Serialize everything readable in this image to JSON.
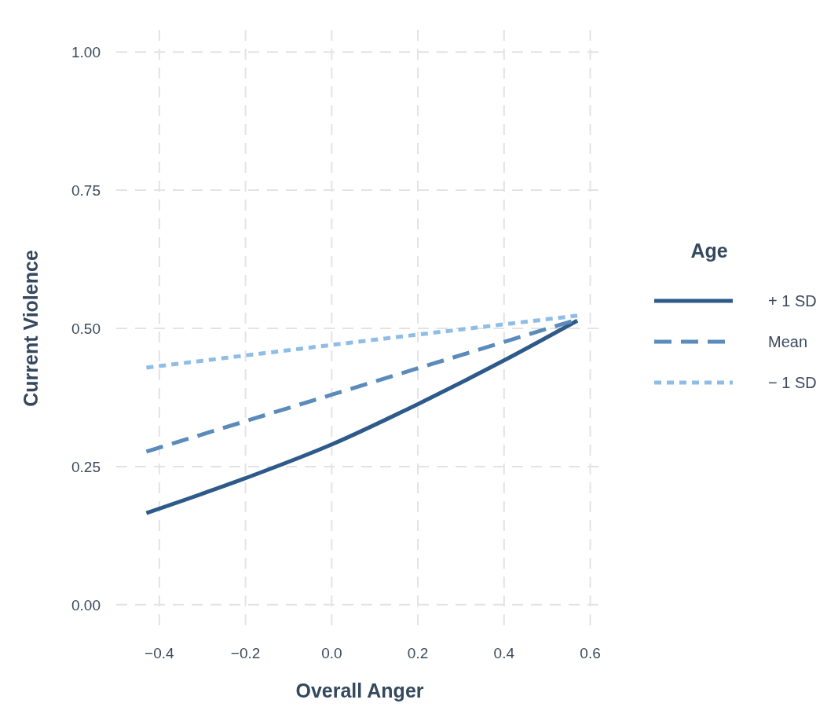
{
  "chart_data": {
    "type": "line",
    "xlabel": "Overall Anger",
    "ylabel": "Current Violence",
    "legend_title": "Age",
    "legend": "right",
    "grid": true,
    "xlim": [
      -0.5,
      0.63
    ],
    "xticks": [
      {
        "value": -0.4,
        "label": "−0.4"
      },
      {
        "value": -0.2,
        "label": "−0.2"
      },
      {
        "value": 0,
        "label": "0.0"
      },
      {
        "value": 0.2,
        "label": "0.2"
      },
      {
        "value": 0.4,
        "label": "0.4"
      },
      {
        "value": 0.6,
        "label": "0.6"
      }
    ],
    "ylim": [
      -0.04,
      1.04
    ],
    "yticks": [
      {
        "value": 0,
        "label": "0.00"
      },
      {
        "value": 0.25,
        "label": "0.25"
      },
      {
        "value": 0.5,
        "label": "0.50"
      },
      {
        "value": 0.75,
        "label": "0.75"
      },
      {
        "value": 1,
        "label": "1.00"
      }
    ],
    "series": [
      {
        "name": "+ 1 SD",
        "color": "#2d5a8a",
        "line_style": "solid",
        "x": [
          -0.43,
          -0.2,
          0,
          0.2,
          0.4,
          0.57
        ],
        "values": [
          0.166,
          0.229,
          0.29,
          0.363,
          0.442,
          0.514
        ]
      },
      {
        "name": "Mean",
        "color": "#5b8bbb",
        "line_style": "dashed",
        "x": [
          -0.43,
          0,
          0.57
        ],
        "values": [
          0.277,
          0.38,
          0.516
        ]
      },
      {
        "name": "− 1 SD",
        "color": "#8fbde6",
        "line_style": "dotted",
        "x": [
          -0.43,
          0,
          0.57
        ],
        "values": [
          0.429,
          0.47,
          0.523
        ]
      }
    ]
  }
}
